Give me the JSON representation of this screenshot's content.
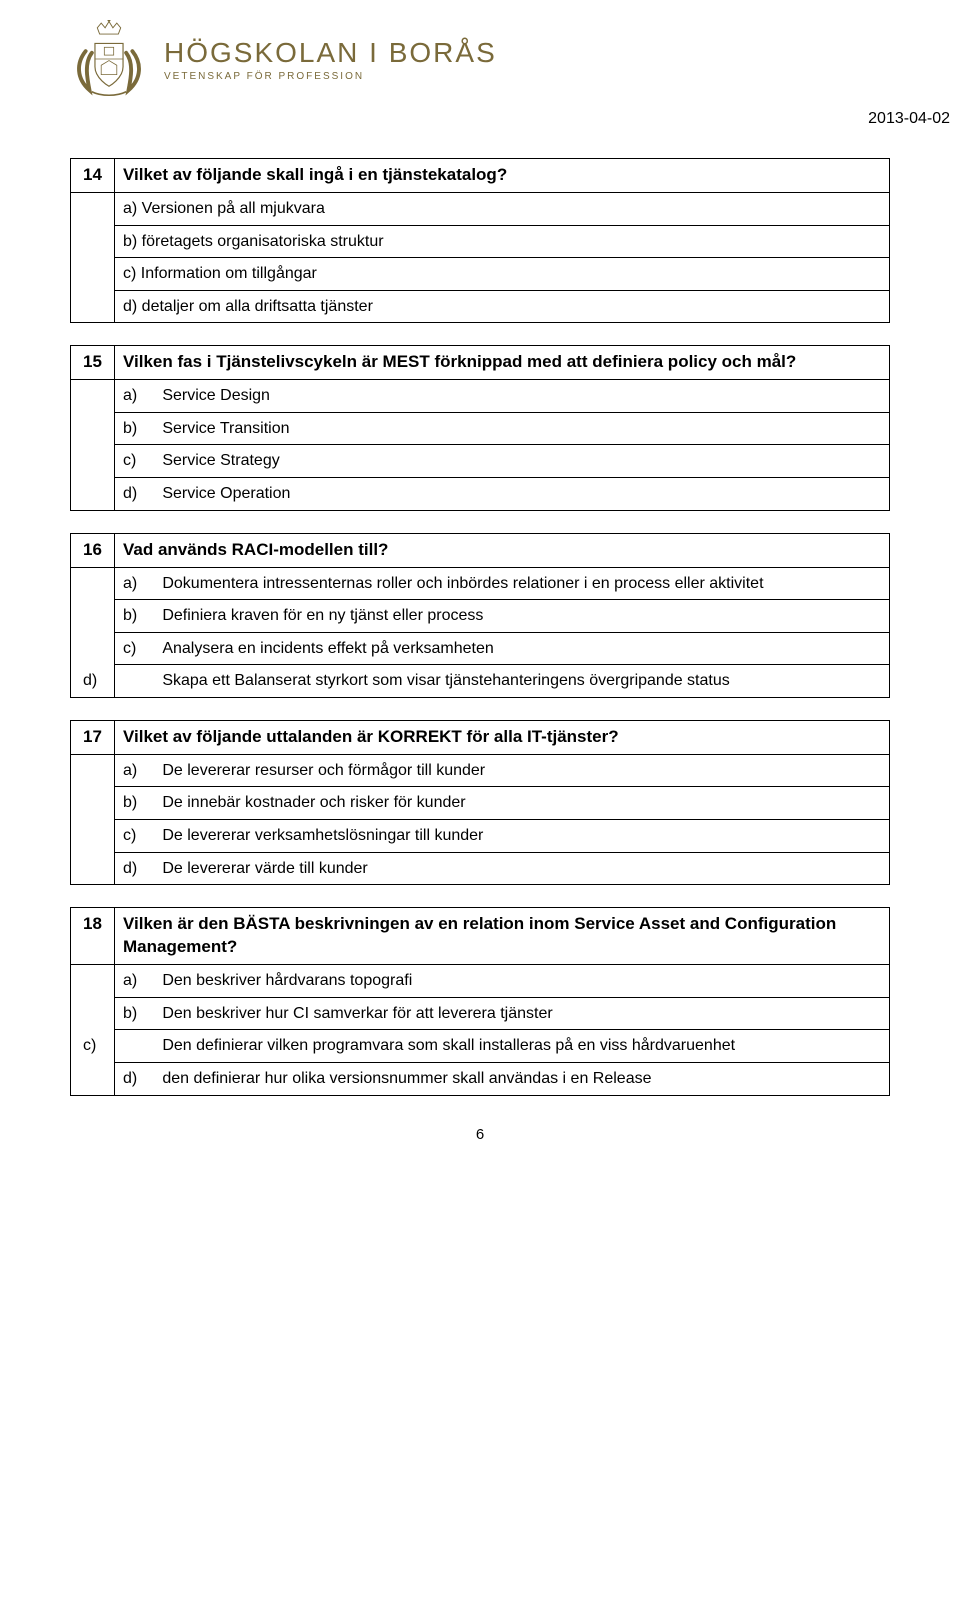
{
  "header": {
    "logo_main": "HÖGSKOLAN I BORÅS",
    "logo_sub": "VETENSKAP FÖR PROFESSION",
    "date": "2013-04-02"
  },
  "questions": [
    {
      "num": "14",
      "text": "Vilket av följande skall ingå i en tjänstekatalog?",
      "options": [
        {
          "l": "a)",
          "t": "Versionen på all mjukvara",
          "style": "plain"
        },
        {
          "l": "b)",
          "t": "företagets organisatoriska struktur",
          "style": "plain"
        },
        {
          "l": "c)",
          "t": "Information om tillgångar",
          "style": "plain"
        },
        {
          "l": "d)",
          "t": "detaljer om alla driftsatta tjänster",
          "style": "plain"
        }
      ]
    },
    {
      "num": "15",
      "text": "Vilken fas i Tjänstelivscykeln är MEST förknippad med att definiera policy och mål?",
      "options": [
        {
          "l": "a)",
          "t": "Service Design",
          "style": "spaced"
        },
        {
          "l": "b)",
          "t": "Service Transition",
          "style": "spaced"
        },
        {
          "l": "c)",
          "t": "Service Strategy",
          "style": "spaced"
        },
        {
          "l": "d)",
          "t": "Service Operation",
          "style": "spaced"
        }
      ]
    },
    {
      "num": "16",
      "text": "Vad används RACI-modellen till?",
      "options": [
        {
          "l": "a)",
          "t": "Dokumentera intressenternas roller och inbördes relationer i en process eller aktivitet",
          "style": "spaced"
        },
        {
          "l": "b)",
          "t": "Definiera kraven för en ny tjänst eller process",
          "style": "spaced"
        },
        {
          "l": "c)",
          "t": "Analysera en incidents effekt på verksamheten",
          "style": "spaced"
        },
        {
          "l": "d)",
          "t": "Skapa ett Balanserat styrkort som visar tjänstehanteringens övergripande status",
          "style": "spaced-indent"
        }
      ]
    },
    {
      "num": "17",
      "text": "Vilket av följande uttalanden är KORREKT för alla IT-tjänster?",
      "options": [
        {
          "l": "a)",
          "t": "De levererar resurser och förmågor till kunder",
          "style": "spaced"
        },
        {
          "l": "b)",
          "t": "De innebär kostnader och risker för kunder",
          "style": "spaced"
        },
        {
          "l": "c)",
          "t": "De levererar verksamhetslösningar till kunder",
          "style": "spaced"
        },
        {
          "l": "d)",
          "t": "De levererar värde till kunder",
          "style": "spaced"
        }
      ]
    },
    {
      "num": "18",
      "text": "Vilken är den BÄSTA beskrivningen av en relation inom Service Asset and Configuration Management?",
      "options": [
        {
          "l": "a)",
          "t": "Den beskriver hårdvarans topografi",
          "style": "spaced"
        },
        {
          "l": "b)",
          "t": "Den beskriver hur CI samverkar för att leverera tjänster",
          "style": "spaced"
        },
        {
          "l": "c)",
          "t": "Den definierar vilken programvara som skall installeras på en viss hårdvaruenhet",
          "style": "spaced-indent"
        },
        {
          "l": "d)",
          "t": "den definierar hur olika versionsnummer skall användas i en Release",
          "style": "spaced"
        }
      ]
    }
  ],
  "pagenum": "6"
}
